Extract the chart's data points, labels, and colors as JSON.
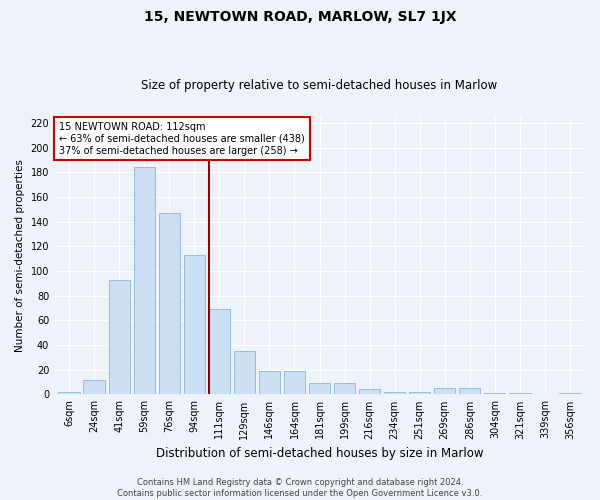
{
  "title": "15, NEWTOWN ROAD, MARLOW, SL7 1JX",
  "subtitle": "Size of property relative to semi-detached houses in Marlow",
  "xlabel": "Distribution of semi-detached houses by size in Marlow",
  "ylabel": "Number of semi-detached properties",
  "categories": [
    "6sqm",
    "24sqm",
    "41sqm",
    "59sqm",
    "76sqm",
    "94sqm",
    "111sqm",
    "129sqm",
    "146sqm",
    "164sqm",
    "181sqm",
    "199sqm",
    "216sqm",
    "234sqm",
    "251sqm",
    "269sqm",
    "286sqm",
    "304sqm",
    "321sqm",
    "339sqm",
    "356sqm"
  ],
  "values": [
    2,
    12,
    93,
    184,
    147,
    113,
    69,
    35,
    19,
    19,
    9,
    9,
    4,
    2,
    2,
    5,
    5,
    1,
    1,
    0,
    1
  ],
  "bar_color": "#cce0f5",
  "bar_edge_color": "#89b8d8",
  "property_line_idx": 6,
  "property_line_color": "#990000",
  "annotation_text": "15 NEWTOWN ROAD: 112sqm\n← 63% of semi-detached houses are smaller (438)\n37% of semi-detached houses are larger (258) →",
  "annotation_box_facecolor": "#ffffff",
  "annotation_box_edgecolor": "#cc0000",
  "ylim": [
    0,
    225
  ],
  "yticks": [
    0,
    20,
    40,
    60,
    80,
    100,
    120,
    140,
    160,
    180,
    200,
    220
  ],
  "footer_line1": "Contains HM Land Registry data © Crown copyright and database right 2024.",
  "footer_line2": "Contains public sector information licensed under the Open Government Licence v3.0.",
  "bg_color": "#eef2f9",
  "grid_color": "#ffffff",
  "title_fontsize": 10,
  "subtitle_fontsize": 8.5,
  "xlabel_fontsize": 8.5,
  "ylabel_fontsize": 7.5,
  "tick_fontsize": 7,
  "annot_fontsize": 7,
  "footer_fontsize": 6
}
